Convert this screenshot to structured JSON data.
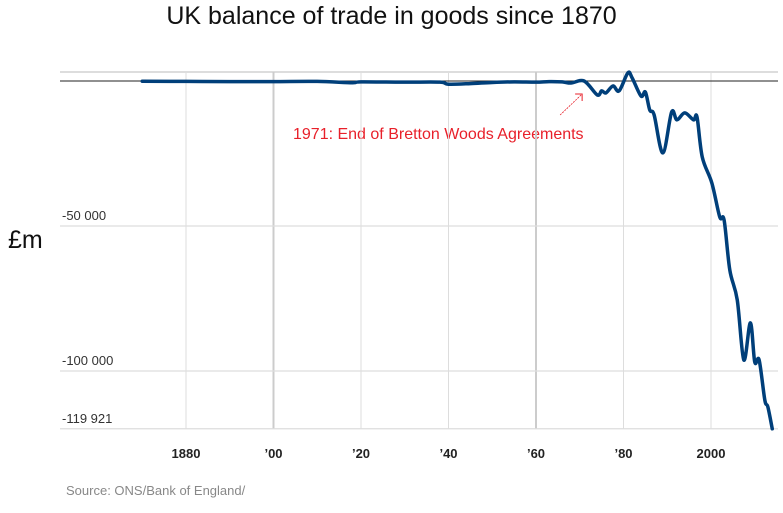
{
  "chart_data": {
    "type": "line",
    "title": "UK balance of trade in goods since 1870",
    "ylabel": "£m",
    "xlabel": "",
    "source": "Source: ONS/Bank of England/",
    "annotation": "1971: End of Bretton Woods Agreements",
    "annotation_year": 1971,
    "xlim": [
      1855,
      2014
    ],
    "ylim": [
      -119921,
      3200
    ],
    "x_ticks": [
      {
        "value": 1880,
        "label": "1880"
      },
      {
        "value": 1900,
        "label": "’00"
      },
      {
        "value": 1920,
        "label": "’20"
      },
      {
        "value": 1940,
        "label": "’40"
      },
      {
        "value": 1960,
        "label": "’60"
      },
      {
        "value": 1980,
        "label": "’80"
      },
      {
        "value": 2000,
        "label": "2000"
      }
    ],
    "y_ticks": [
      {
        "value": -50000,
        "label": "-50 000"
      },
      {
        "value": -100000,
        "label": "-100 000"
      },
      {
        "value": -119921,
        "label": "-119 921"
      }
    ],
    "line_color": "#003f7a",
    "annotation_color": "#e8202a",
    "series": [
      {
        "name": "Balance of trade in goods",
        "x": [
          1870,
          1880,
          1890,
          1900,
          1910,
          1918,
          1920,
          1930,
          1938,
          1940,
          1945,
          1950,
          1955,
          1960,
          1963,
          1966,
          1968,
          1971,
          1974,
          1975,
          1976,
          1977.6,
          1979,
          1981,
          1982,
          1984,
          1985,
          1986,
          1987,
          1989,
          1991,
          1992.2,
          1994,
          1996,
          1996.8,
          1998,
          2000.2,
          2002,
          2003,
          2004.3,
          2006,
          2007.5,
          2009,
          2010,
          2011,
          2012.3,
          2013,
          2014
        ],
        "y": [
          -100,
          -150,
          -200,
          -200,
          -150,
          -600,
          -300,
          -400,
          -400,
          -1100,
          -900,
          -500,
          -300,
          -400,
          -200,
          -300,
          -700,
          0,
          -4800,
          -3400,
          -4100,
          -1700,
          -3400,
          2800,
          1000,
          -5200,
          -3800,
          -10000,
          -11700,
          -24800,
          -10700,
          -13400,
          -11000,
          -13400,
          -12400,
          -26200,
          -35200,
          -46900,
          -48000,
          -65200,
          -75500,
          -96200,
          -83400,
          -96900,
          -96200,
          -110000,
          -112400,
          -119921
        ]
      }
    ]
  }
}
